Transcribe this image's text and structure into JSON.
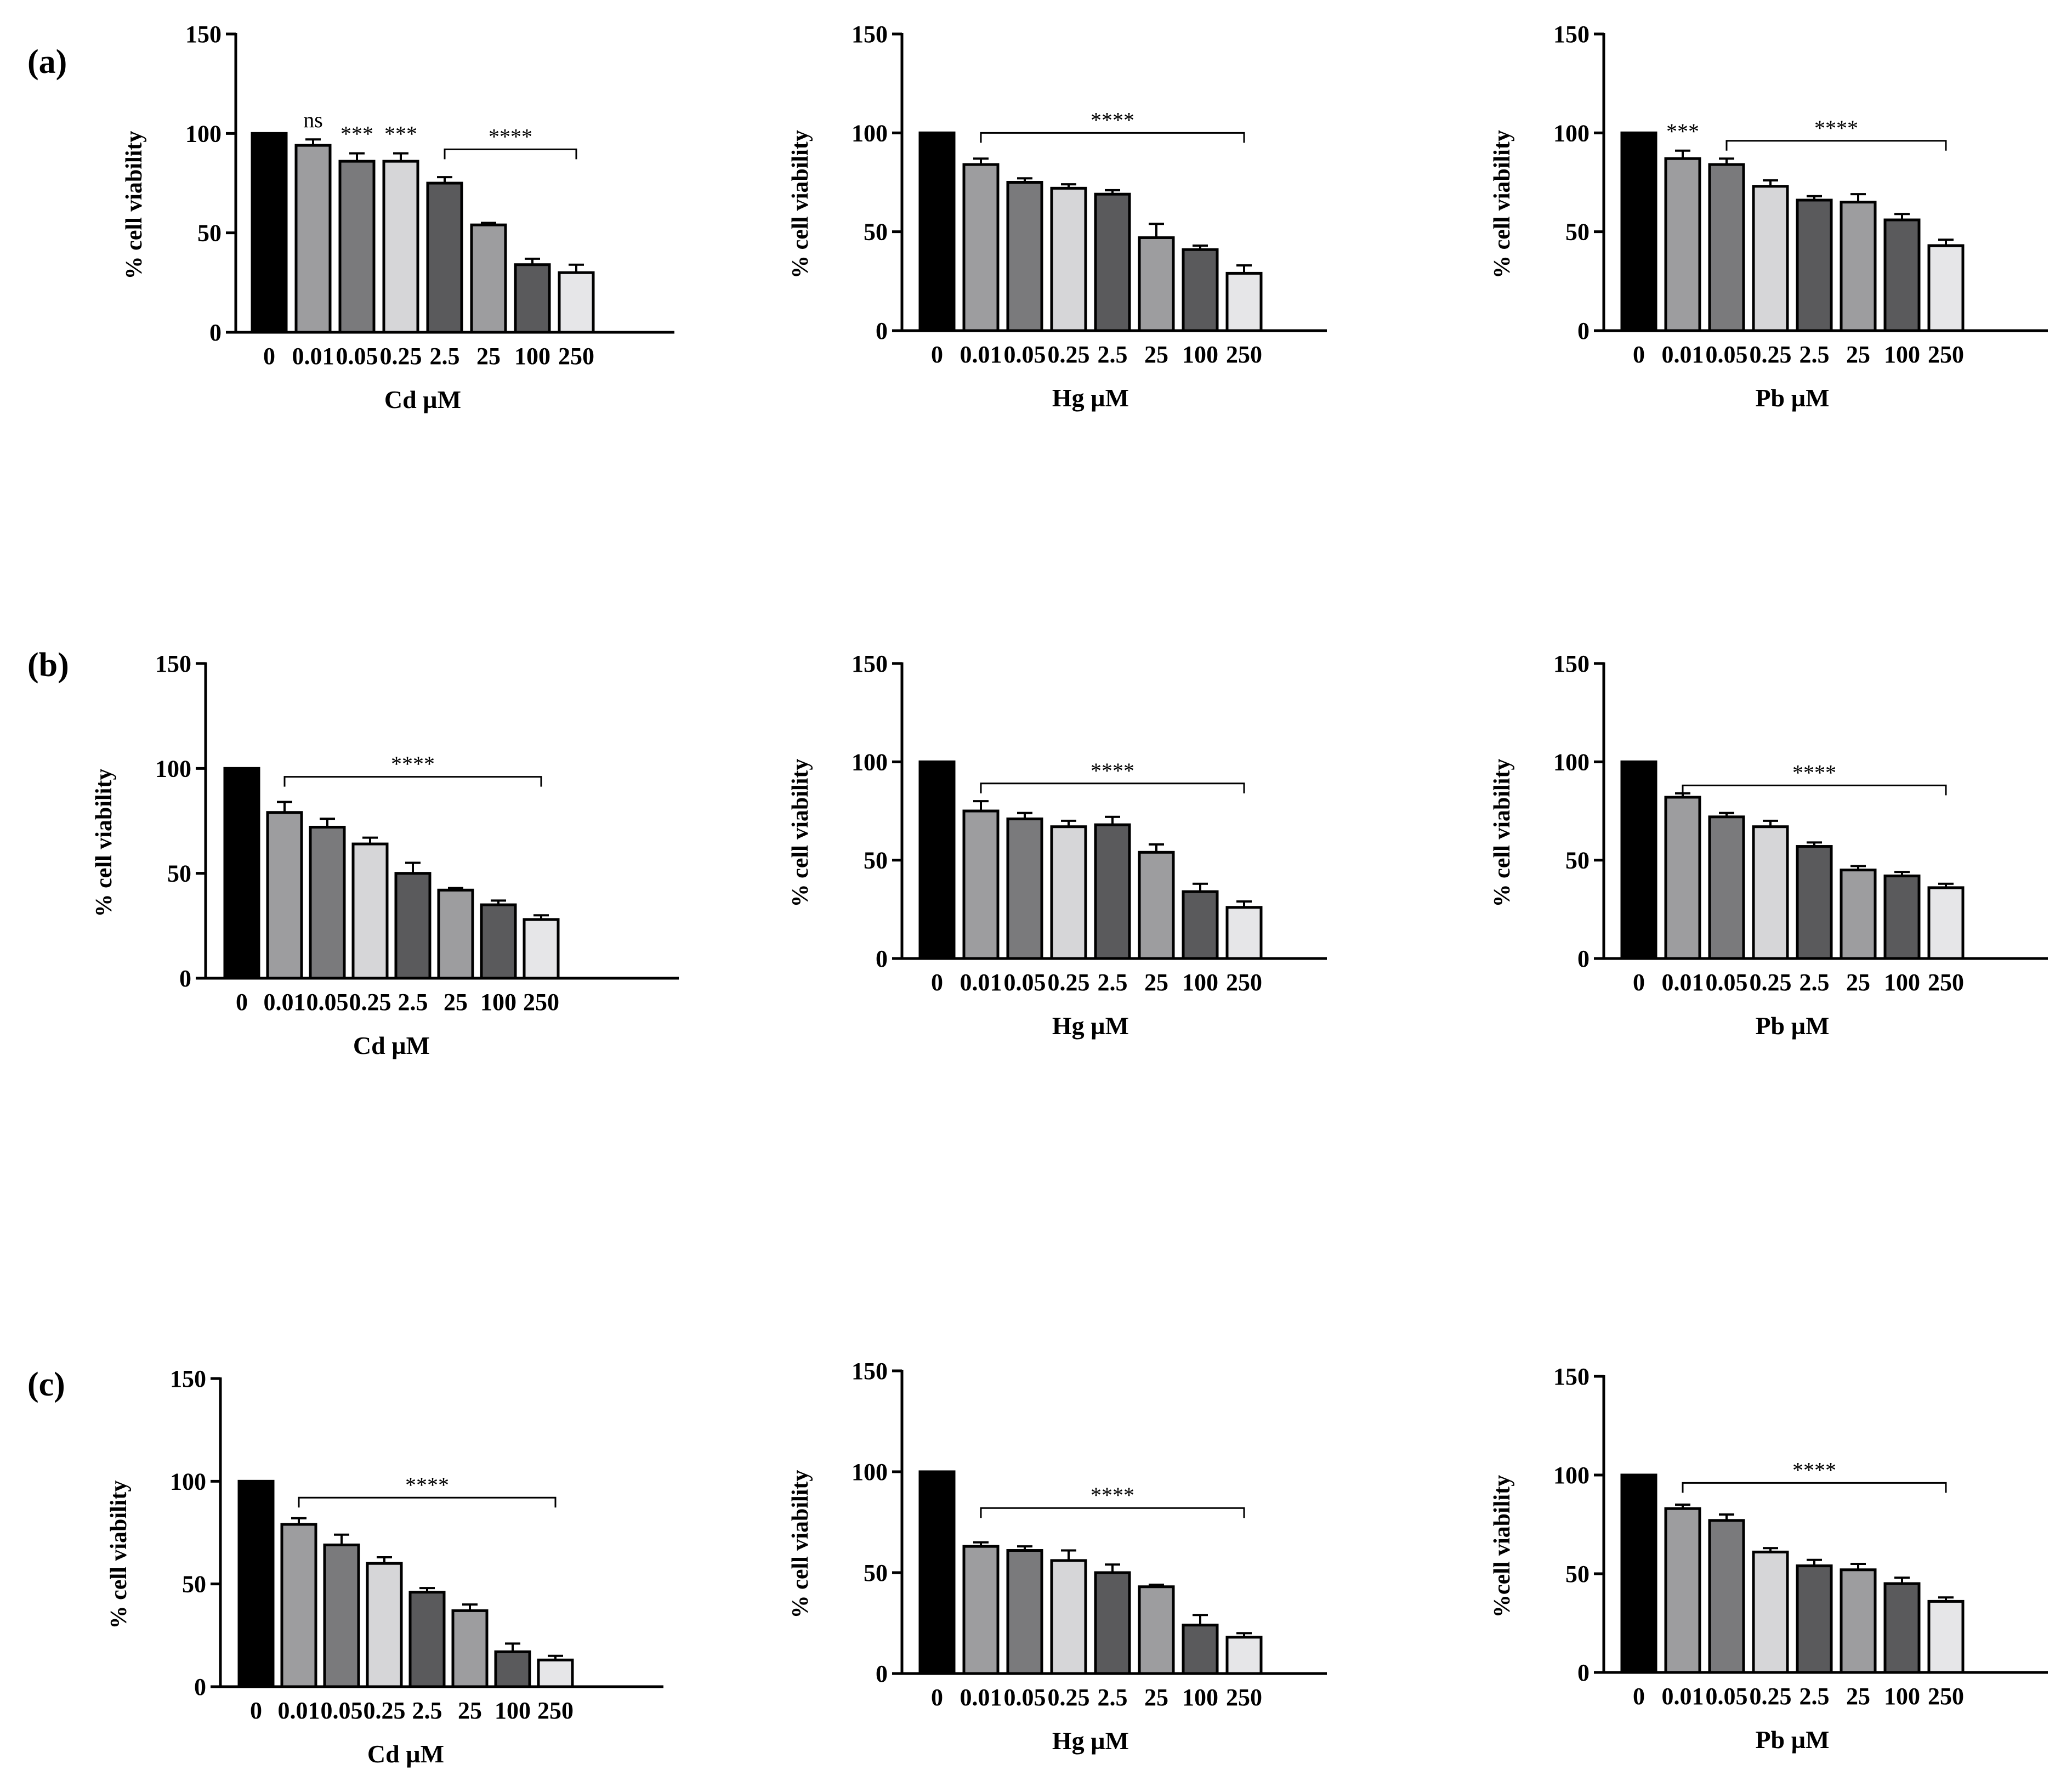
{
  "panel_labels": [
    "(a)",
    "(b)",
    "(c)"
  ],
  "colors": {
    "bars": [
      "#000000",
      "#9d9d9f",
      "#7a7a7c",
      "#d6d6d8",
      "#5a5a5c",
      "#9d9d9f",
      "#5a5a5c",
      "#e6e6e8"
    ]
  },
  "chart_data": [
    {
      "type": "bar",
      "panel": "(a)",
      "title": "",
      "xlabel": "Cd µM",
      "ylabel": "% cell viability",
      "ylim": [
        0,
        150
      ],
      "yticks": [
        0,
        50,
        100,
        150
      ],
      "categories": [
        "0",
        "0.01",
        "0.05",
        "0.25",
        "2.5",
        "25",
        "100",
        "250"
      ],
      "values": [
        100,
        94,
        86,
        86,
        75,
        54,
        34,
        30
      ],
      "errors": [
        0,
        3,
        4,
        4,
        3,
        1,
        3,
        4
      ],
      "annotations": [
        {
          "text": "ns",
          "bar": 1
        },
        {
          "text": "***",
          "bar": 2
        },
        {
          "text": "***",
          "bar": 3
        },
        {
          "text": "****",
          "from": 4,
          "to": 7,
          "y": 92
        }
      ]
    },
    {
      "type": "bar",
      "panel": "(a)",
      "title": "",
      "xlabel": "Hg µM",
      "ylabel": "% cell viability",
      "ylim": [
        0,
        150
      ],
      "yticks": [
        0,
        50,
        100,
        150
      ],
      "categories": [
        "0",
        "0.01",
        "0.05",
        "0.25",
        "2.5",
        "25",
        "100",
        "250"
      ],
      "values": [
        100,
        84,
        75,
        72,
        69,
        47,
        41,
        29
      ],
      "errors": [
        0,
        3,
        2,
        2,
        2,
        7,
        2,
        4
      ],
      "annotations": [
        {
          "text": "****",
          "from": 1,
          "to": 7,
          "y": 100
        }
      ]
    },
    {
      "type": "bar",
      "panel": "(a)",
      "title": "",
      "xlabel": "Pb µM",
      "ylabel": "% cell viability",
      "ylim": [
        0,
        150
      ],
      "yticks": [
        0,
        50,
        100,
        150
      ],
      "categories": [
        "0",
        "0.01",
        "0.05",
        "0.25",
        "2.5",
        "25",
        "100",
        "250"
      ],
      "values": [
        100,
        87,
        84,
        73,
        66,
        65,
        56,
        43
      ],
      "errors": [
        0,
        4,
        3,
        3,
        2,
        4,
        3,
        3
      ],
      "annotations": [
        {
          "text": "***",
          "bar": 1
        },
        {
          "text": "****",
          "from": 2,
          "to": 7,
          "y": 96
        }
      ]
    },
    {
      "type": "bar",
      "panel": "(b)",
      "title": "",
      "xlabel": "Cd µM",
      "ylabel": "% cell viability",
      "ylim": [
        0,
        150
      ],
      "yticks": [
        0,
        50,
        100,
        150
      ],
      "categories": [
        "0",
        "0.01",
        "0.05",
        "0.25",
        "2.5",
        "25",
        "100",
        "250"
      ],
      "values": [
        100,
        79,
        72,
        64,
        50,
        42,
        35,
        28
      ],
      "errors": [
        0,
        5,
        4,
        3,
        5,
        1,
        2,
        2
      ],
      "annotations": [
        {
          "text": "****",
          "from": 1,
          "to": 7,
          "y": 96
        }
      ]
    },
    {
      "type": "bar",
      "panel": "(b)",
      "title": "",
      "xlabel": "Hg µM",
      "ylabel": "% cell viability",
      "ylim": [
        0,
        150
      ],
      "yticks": [
        0,
        50,
        100,
        150
      ],
      "categories": [
        "0",
        "0.01",
        "0.05",
        "0.25",
        "2.5",
        "25",
        "100",
        "250"
      ],
      "values": [
        100,
        75,
        71,
        67,
        68,
        54,
        34,
        26
      ],
      "errors": [
        0,
        5,
        3,
        3,
        4,
        4,
        4,
        3
      ],
      "annotations": [
        {
          "text": "****",
          "from": 1,
          "to": 7,
          "y": 89
        }
      ]
    },
    {
      "type": "bar",
      "panel": "(b)",
      "title": "",
      "xlabel": "Pb µM",
      "ylabel": "% cell viability",
      "ylim": [
        0,
        150
      ],
      "yticks": [
        0,
        50,
        100,
        150
      ],
      "categories": [
        "0",
        "0.01",
        "0.05",
        "0.25",
        "2.5",
        "25",
        "100",
        "250"
      ],
      "values": [
        100,
        82,
        72,
        67,
        57,
        45,
        42,
        36
      ],
      "errors": [
        0,
        2,
        2,
        3,
        2,
        2,
        2,
        2
      ],
      "annotations": [
        {
          "text": "****",
          "from": 1,
          "to": 7,
          "y": 88
        }
      ]
    },
    {
      "type": "bar",
      "panel": "(c)",
      "title": "",
      "xlabel": "Cd µM",
      "ylabel": "% cell viability",
      "ylim": [
        0,
        150
      ],
      "yticks": [
        0,
        50,
        100,
        150
      ],
      "categories": [
        "0",
        "0.01",
        "0.05",
        "0.25",
        "2.5",
        "25",
        "100",
        "250"
      ],
      "values": [
        100,
        79,
        69,
        60,
        46,
        37,
        17,
        13
      ],
      "errors": [
        0,
        3,
        5,
        3,
        2,
        3,
        4,
        2
      ],
      "annotations": [
        {
          "text": "****",
          "from": 1,
          "to": 7,
          "y": 92
        }
      ]
    },
    {
      "type": "bar",
      "panel": "(c)",
      "title": "",
      "xlabel": "Hg µM",
      "ylabel": "% cell viability",
      "ylim": [
        0,
        150
      ],
      "yticks": [
        0,
        50,
        100,
        150
      ],
      "categories": [
        "0",
        "0.01",
        "0.05",
        "0.25",
        "2.5",
        "25",
        "100",
        "250"
      ],
      "values": [
        100,
        63,
        61,
        56,
        50,
        43,
        24,
        18
      ],
      "errors": [
        0,
        2,
        2,
        5,
        4,
        1,
        5,
        2
      ],
      "annotations": [
        {
          "text": "****",
          "from": 1,
          "to": 7,
          "y": 82
        }
      ]
    },
    {
      "type": "bar",
      "panel": "(c)",
      "title": "",
      "xlabel": "Pb µM",
      "ylabel": "%cell viability",
      "ylim": [
        0,
        150
      ],
      "yticks": [
        0,
        50,
        100,
        150
      ],
      "categories": [
        "0",
        "0.01",
        "0.05",
        "0.25",
        "2.5",
        "25",
        "100",
        "250"
      ],
      "values": [
        100,
        83,
        77,
        61,
        54,
        52,
        45,
        36
      ],
      "errors": [
        0,
        2,
        3,
        2,
        3,
        3,
        3,
        2
      ],
      "annotations": [
        {
          "text": "****",
          "from": 1,
          "to": 7,
          "y": 96
        }
      ]
    }
  ]
}
